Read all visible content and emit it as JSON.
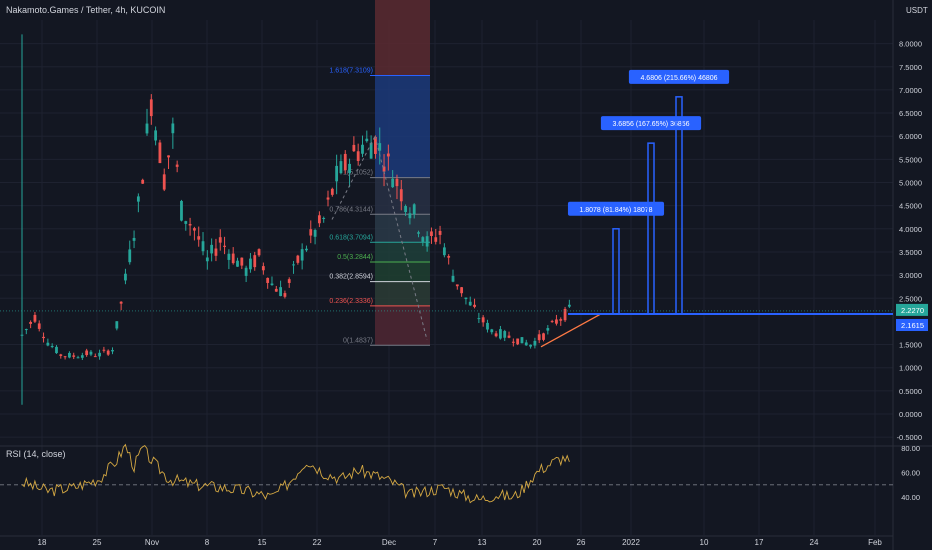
{
  "header": {
    "title": "Nakamoto.Games / Tether, 4h, KUCOIN",
    "unit": "USDT"
  },
  "rsi": {
    "label": "RSI (14, close)",
    "ticks": [
      "80.00",
      "60.00",
      "40.00"
    ]
  },
  "colors": {
    "background": "#131722",
    "up": "#26a69a",
    "down": "#ef5350",
    "blue": "#2962ff",
    "rsi_line": "#d4a843",
    "grid": "#1e2230"
  },
  "chart_data": {
    "type": "candlestick",
    "price_axis": {
      "ticks": [
        "8.0000",
        "7.5000",
        "7.0000",
        "6.5000",
        "6.0000",
        "5.5000",
        "5.0000",
        "4.5000",
        "4.0000",
        "3.5000",
        "3.0000",
        "2.5000",
        "1.5000",
        "1.0000",
        "0.5000",
        "0.0000",
        "-0.5000"
      ],
      "range": [
        -0.5,
        8.0
      ]
    },
    "x_axis": {
      "ticks": [
        "18",
        "25",
        "Nov",
        "8",
        "15",
        "22",
        "Dec",
        "7",
        "13",
        "20",
        "26",
        "2022",
        "10",
        "17",
        "24",
        "Feb"
      ]
    },
    "current_price_labels": [
      "2.2270",
      "2.1615"
    ],
    "price_path": [
      [
        0,
        1.7
      ],
      [
        3,
        2.1
      ],
      [
        6,
        1.55
      ],
      [
        9,
        1.28
      ],
      [
        12,
        1.25
      ],
      [
        15,
        1.3
      ],
      [
        18,
        1.28
      ],
      [
        21,
        1.4
      ],
      [
        24,
        2.9
      ],
      [
        27,
        4.5
      ],
      [
        30,
        6.8
      ],
      [
        33,
        5.1
      ],
      [
        35,
        6.1
      ],
      [
        37,
        4.4
      ],
      [
        40,
        4.0
      ],
      [
        43,
        3.3
      ],
      [
        46,
        3.75
      ],
      [
        49,
        3.4
      ],
      [
        52,
        3.1
      ],
      [
        55,
        3.4
      ],
      [
        58,
        2.8
      ],
      [
        61,
        2.6
      ],
      [
        64,
        3.3
      ],
      [
        67,
        3.8
      ],
      [
        70,
        4.2
      ],
      [
        73,
        5.1
      ],
      [
        76,
        5.5
      ],
      [
        79,
        5.8
      ],
      [
        82,
        5.9
      ],
      [
        85,
        5.4
      ],
      [
        88,
        4.8
      ],
      [
        91,
        4.3
      ],
      [
        94,
        3.7
      ],
      [
        97,
        3.9
      ],
      [
        100,
        3.0
      ],
      [
        103,
        2.5
      ],
      [
        106,
        2.1
      ],
      [
        109,
        1.8
      ],
      [
        112,
        1.7
      ],
      [
        115,
        1.6
      ],
      [
        118,
        1.5
      ],
      [
        121,
        1.7
      ],
      [
        124,
        2.0
      ],
      [
        127,
        2.23
      ]
    ],
    "fibonacci": {
      "levels": [
        {
          "label": "1.618(7.3109)",
          "price": 7.31,
          "color": "#2962ff"
        },
        {
          "label": "1(5.1052)",
          "price": 5.105,
          "color": "#787b86"
        },
        {
          "label": "0.786(4.3144)",
          "price": 4.314,
          "color": "#787b86"
        },
        {
          "label": "0.618(3.7094)",
          "price": 3.709,
          "color": "#26a69a"
        },
        {
          "label": "0.5(3.2844)",
          "price": 3.284,
          "color": "#4caf50"
        },
        {
          "label": "0.382(2.8594)",
          "price": 2.859,
          "color": "#d1d4dc"
        },
        {
          "label": "0.236(2.3336)",
          "price": 2.334,
          "color": "#ef5350"
        },
        {
          "label": "0(1.4837)",
          "price": 1.484,
          "color": "#787b86"
        }
      ]
    },
    "targets": [
      {
        "label": "1.8078 (81.84%) 18078",
        "top": 4.0
      },
      {
        "label": "3.6856 (167.65%) 36856",
        "top": 5.85
      },
      {
        "label": "4.6806 (215.66%) 46806",
        "top": 6.85
      }
    ],
    "rsi_path": [
      [
        0,
        52
      ],
      [
        6,
        45
      ],
      [
        12,
        48
      ],
      [
        18,
        55
      ],
      [
        22,
        70
      ],
      [
        24,
        82
      ],
      [
        26,
        65
      ],
      [
        28,
        80
      ],
      [
        30,
        70
      ],
      [
        34,
        55
      ],
      [
        40,
        50
      ],
      [
        46,
        48
      ],
      [
        52,
        45
      ],
      [
        58,
        40
      ],
      [
        62,
        52
      ],
      [
        66,
        70
      ],
      [
        70,
        60
      ],
      [
        74,
        55
      ],
      [
        78,
        62
      ],
      [
        82,
        58
      ],
      [
        86,
        52
      ],
      [
        90,
        42
      ],
      [
        94,
        45
      ],
      [
        98,
        48
      ],
      [
        102,
        42
      ],
      [
        106,
        38
      ],
      [
        110,
        42
      ],
      [
        114,
        40
      ],
      [
        116,
        46
      ],
      [
        118,
        55
      ],
      [
        120,
        62
      ],
      [
        122,
        66
      ],
      [
        124,
        70
      ],
      [
        126,
        72
      ],
      [
        127,
        68
      ]
    ]
  }
}
